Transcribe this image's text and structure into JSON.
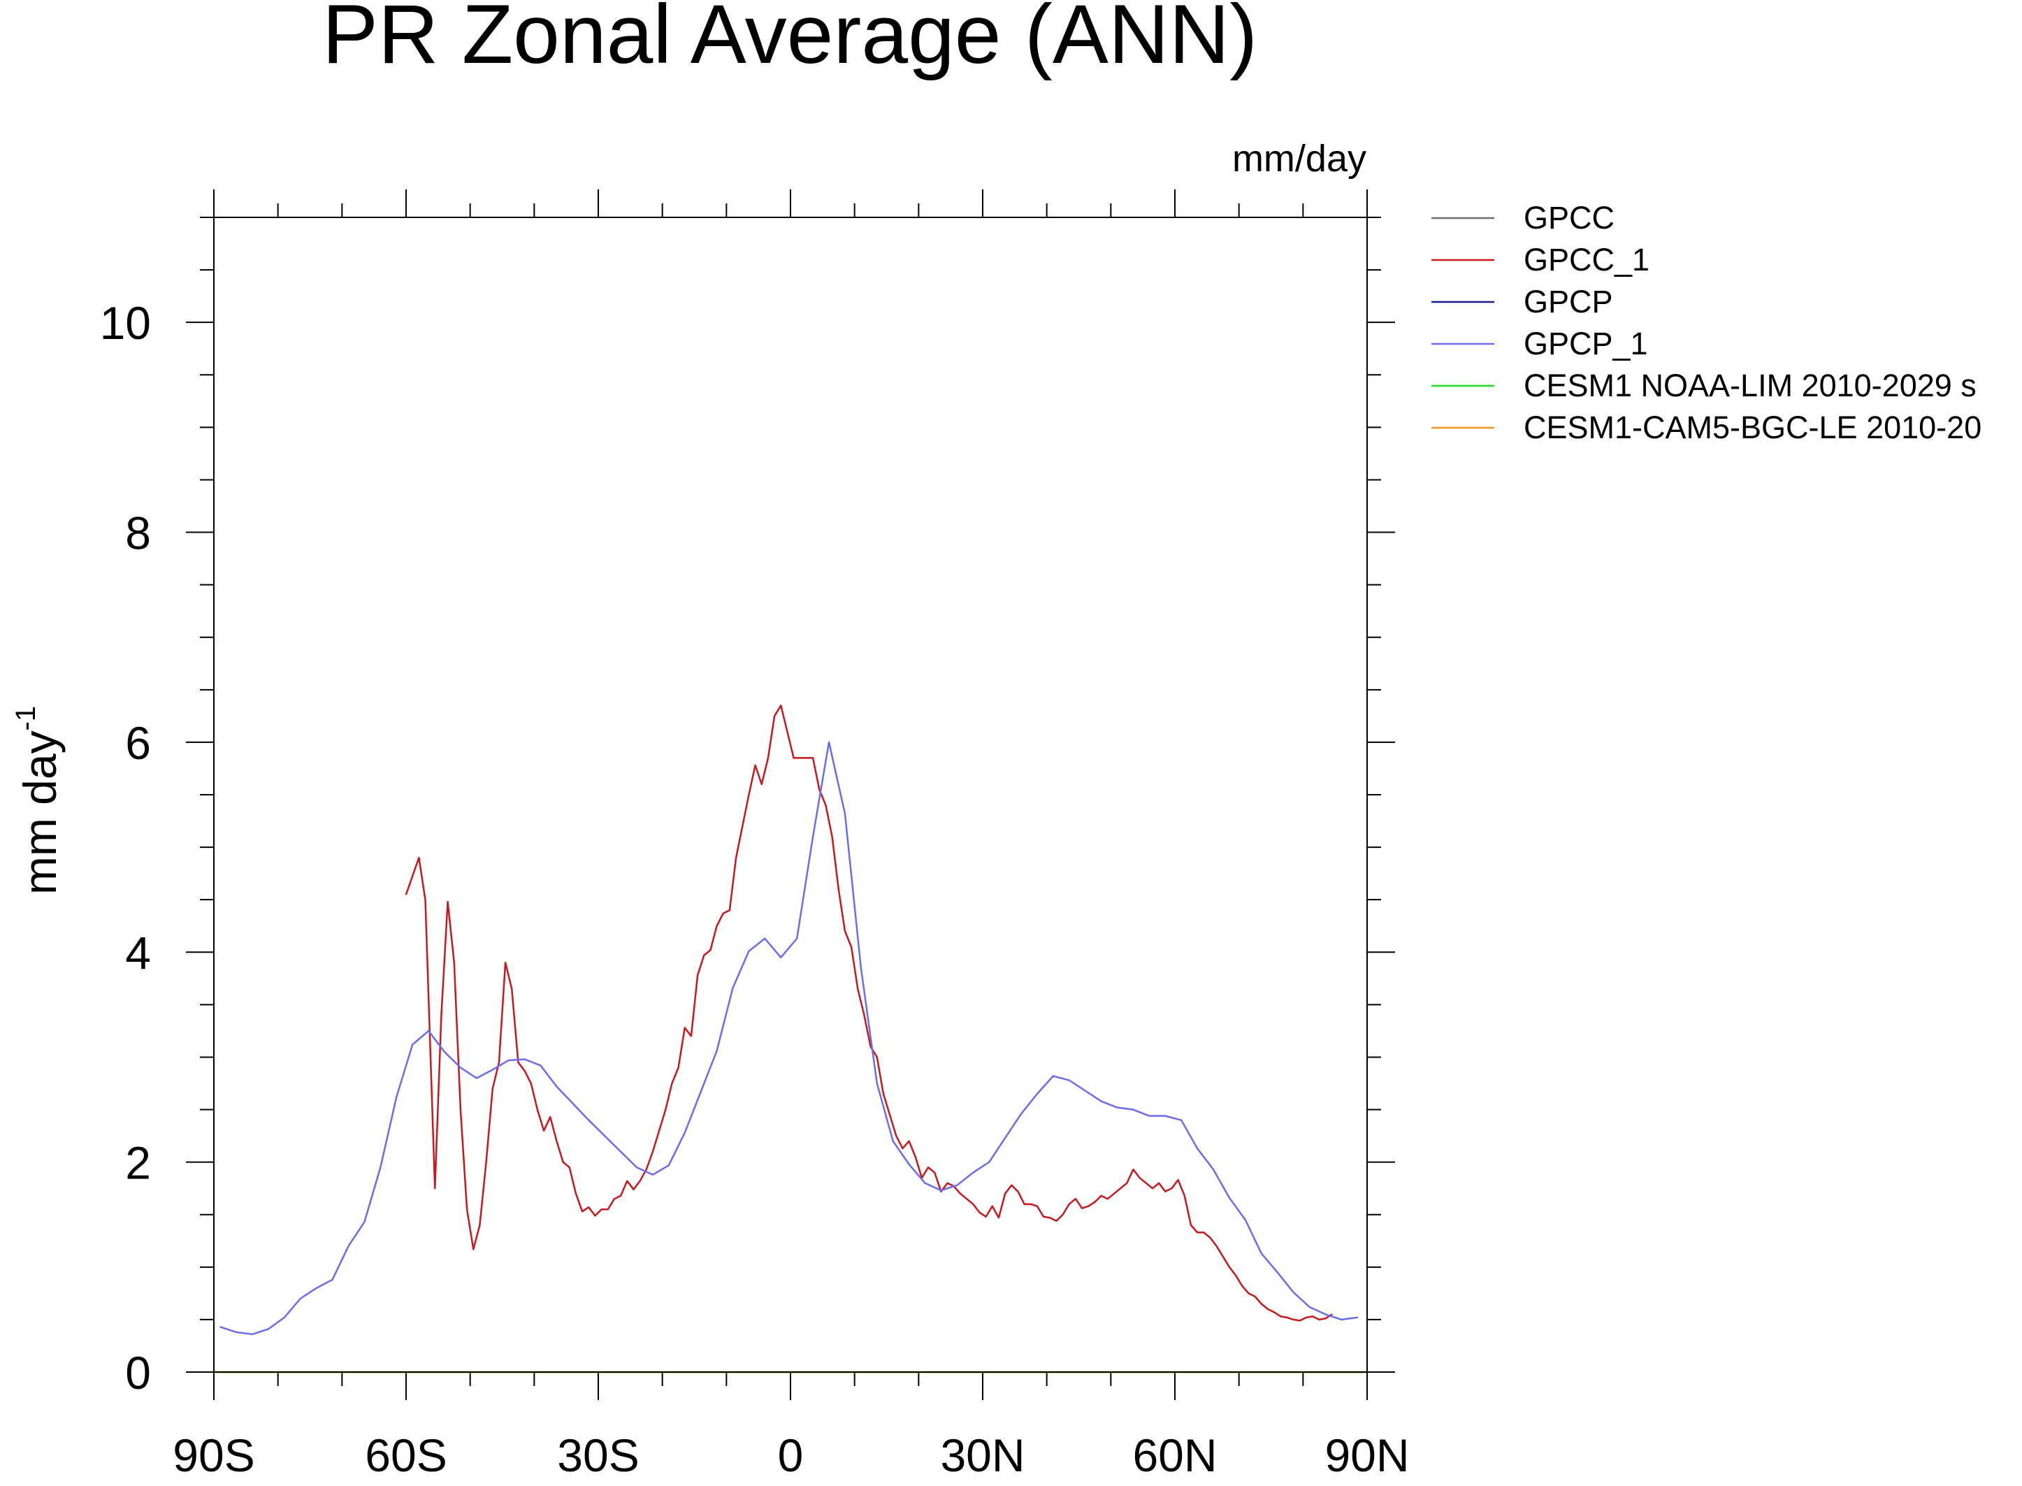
{
  "chart_data": {
    "type": "line",
    "title": "PR Zonal Average (ANN)",
    "units_label": "mm/day",
    "ylabel": "mm day",
    "ylabel_superscript": "-1",
    "xlim": [
      -90,
      90
    ],
    "ylim": [
      0,
      11
    ],
    "xticks": [
      {
        "value": -90,
        "label": "90S"
      },
      {
        "value": -60,
        "label": "60S"
      },
      {
        "value": -30,
        "label": "30S"
      },
      {
        "value": 0,
        "label": "0"
      },
      {
        "value": 30,
        "label": "30N"
      },
      {
        "value": 60,
        "label": "60N"
      },
      {
        "value": 90,
        "label": "90N"
      }
    ],
    "yticks": [
      {
        "value": 0,
        "label": "0"
      },
      {
        "value": 2,
        "label": "2"
      },
      {
        "value": 4,
        "label": "4"
      },
      {
        "value": 6,
        "label": "6"
      },
      {
        "value": 8,
        "label": "8"
      },
      {
        "value": 10,
        "label": "10"
      }
    ],
    "x_minor_step": 10,
    "y_minor_step": 0.5,
    "legend_position": "top-right, outside plot",
    "series": [
      {
        "name": "GPCC",
        "color": "#6e6e6e",
        "points": []
      },
      {
        "name": "GPCC_1",
        "color": "#c8181e",
        "points": [
          [
            -60,
            4.55
          ],
          [
            -58,
            4.9
          ],
          [
            -57,
            4.5
          ],
          [
            -55.5,
            1.75
          ],
          [
            -54.5,
            3.4
          ],
          [
            -53.5,
            4.48
          ],
          [
            -52.5,
            3.9
          ],
          [
            -51.5,
            2.5
          ],
          [
            -50.5,
            1.55
          ],
          [
            -49.5,
            1.17
          ],
          [
            -48.5,
            1.4
          ],
          [
            -47.5,
            2.0
          ],
          [
            -46.5,
            2.7
          ],
          [
            -45.5,
            2.95
          ],
          [
            -44.5,
            3.9
          ],
          [
            -43.5,
            3.65
          ],
          [
            -42.5,
            2.95
          ],
          [
            -41.5,
            2.87
          ],
          [
            -40.5,
            2.75
          ],
          [
            -39.5,
            2.5
          ],
          [
            -38.5,
            2.3
          ],
          [
            -37.5,
            2.43
          ],
          [
            -36.5,
            2.2
          ],
          [
            -35.5,
            2.0
          ],
          [
            -34.5,
            1.95
          ],
          [
            -33.5,
            1.7
          ],
          [
            -32.5,
            1.53
          ],
          [
            -31.5,
            1.57
          ],
          [
            -30.5,
            1.49
          ],
          [
            -29.5,
            1.55
          ],
          [
            -28.5,
            1.55
          ],
          [
            -27.5,
            1.65
          ],
          [
            -26.5,
            1.68
          ],
          [
            -25.5,
            1.82
          ],
          [
            -24.5,
            1.74
          ],
          [
            -23.5,
            1.82
          ],
          [
            -22.5,
            1.93
          ],
          [
            -21.5,
            2.1
          ],
          [
            -20.5,
            2.3
          ],
          [
            -19.5,
            2.5
          ],
          [
            -18.5,
            2.75
          ],
          [
            -17.5,
            2.9
          ],
          [
            -16.5,
            3.28
          ],
          [
            -15.5,
            3.2
          ],
          [
            -14.5,
            3.78
          ],
          [
            -13.5,
            3.97
          ],
          [
            -12.5,
            4.02
          ],
          [
            -11.5,
            4.25
          ],
          [
            -10.5,
            4.37
          ],
          [
            -9.5,
            4.4
          ],
          [
            -8.5,
            4.9
          ],
          [
            -7.5,
            5.2
          ],
          [
            -6.5,
            5.5
          ],
          [
            -5.5,
            5.78
          ],
          [
            -4.5,
            5.6
          ],
          [
            -3.5,
            5.85
          ],
          [
            -2.5,
            6.25
          ],
          [
            -1.5,
            6.35
          ],
          [
            -0.5,
            6.1
          ],
          [
            0.5,
            5.85
          ],
          [
            1.5,
            5.85
          ],
          [
            2.5,
            5.85
          ],
          [
            3.5,
            5.85
          ],
          [
            4.5,
            5.55
          ],
          [
            5.5,
            5.4
          ],
          [
            6.5,
            5.1
          ],
          [
            7.5,
            4.6
          ],
          [
            8.5,
            4.2
          ],
          [
            9.5,
            4.05
          ],
          [
            10.5,
            3.65
          ],
          [
            11.5,
            3.4
          ],
          [
            12.5,
            3.1
          ],
          [
            13.5,
            3.0
          ],
          [
            14.5,
            2.65
          ],
          [
            15.5,
            2.45
          ],
          [
            16.5,
            2.25
          ],
          [
            17.5,
            2.13
          ],
          [
            18.5,
            2.2
          ],
          [
            19.5,
            2.05
          ],
          [
            20.5,
            1.85
          ],
          [
            21.5,
            1.95
          ],
          [
            22.5,
            1.9
          ],
          [
            23.5,
            1.72
          ],
          [
            24.5,
            1.8
          ],
          [
            25.5,
            1.77
          ],
          [
            26.5,
            1.7
          ],
          [
            27.5,
            1.65
          ],
          [
            28.5,
            1.6
          ],
          [
            29.5,
            1.52
          ],
          [
            30.5,
            1.48
          ],
          [
            31.5,
            1.58
          ],
          [
            32.5,
            1.47
          ],
          [
            33.5,
            1.7
          ],
          [
            34.5,
            1.78
          ],
          [
            35.5,
            1.72
          ],
          [
            36.5,
            1.6
          ],
          [
            37.5,
            1.6
          ],
          [
            38.5,
            1.58
          ],
          [
            39.5,
            1.48
          ],
          [
            40.5,
            1.47
          ],
          [
            41.5,
            1.44
          ],
          [
            42.5,
            1.5
          ],
          [
            43.5,
            1.6
          ],
          [
            44.5,
            1.65
          ],
          [
            45.5,
            1.56
          ],
          [
            46.5,
            1.58
          ],
          [
            47.5,
            1.62
          ],
          [
            48.5,
            1.68
          ],
          [
            49.5,
            1.65
          ],
          [
            50.5,
            1.7
          ],
          [
            51.5,
            1.75
          ],
          [
            52.5,
            1.8
          ],
          [
            53.5,
            1.93
          ],
          [
            54.5,
            1.85
          ],
          [
            55.5,
            1.8
          ],
          [
            56.5,
            1.75
          ],
          [
            57.5,
            1.8
          ],
          [
            58.5,
            1.72
          ],
          [
            59.5,
            1.75
          ],
          [
            60.5,
            1.83
          ],
          [
            61.5,
            1.68
          ],
          [
            62.5,
            1.4
          ],
          [
            63.5,
            1.33
          ],
          [
            64.5,
            1.33
          ],
          [
            65.5,
            1.28
          ],
          [
            66.5,
            1.2
          ],
          [
            67.5,
            1.1
          ],
          [
            68.5,
            1.0
          ],
          [
            69.5,
            0.92
          ],
          [
            70.5,
            0.82
          ],
          [
            71.5,
            0.75
          ],
          [
            72.5,
            0.72
          ],
          [
            73.5,
            0.65
          ],
          [
            74.5,
            0.6
          ],
          [
            75.5,
            0.57
          ],
          [
            76.5,
            0.53
          ],
          [
            77.5,
            0.52
          ],
          [
            78.5,
            0.5
          ],
          [
            79.5,
            0.49
          ],
          [
            80.5,
            0.52
          ],
          [
            81.5,
            0.53
          ],
          [
            82.5,
            0.5
          ],
          [
            83.5,
            0.51
          ],
          [
            84.5,
            0.55
          ]
        ]
      },
      {
        "name": "GPCP",
        "color": "#1a1a8c",
        "points": []
      },
      {
        "name": "GPCP_1",
        "color": "#6b6bf0",
        "points": [
          [
            -89,
            0.43
          ],
          [
            -86.5,
            0.38
          ],
          [
            -84,
            0.36
          ],
          [
            -81.5,
            0.41
          ],
          [
            -79,
            0.52
          ],
          [
            -76.5,
            0.7
          ],
          [
            -74,
            0.8
          ],
          [
            -71.5,
            0.88
          ],
          [
            -69,
            1.2
          ],
          [
            -66.5,
            1.43
          ],
          [
            -64,
            1.95
          ],
          [
            -61.5,
            2.62
          ],
          [
            -59,
            3.12
          ],
          [
            -56.5,
            3.25
          ],
          [
            -54,
            3.05
          ],
          [
            -51.5,
            2.9
          ],
          [
            -49,
            2.8
          ],
          [
            -46.5,
            2.88
          ],
          [
            -44,
            2.97
          ],
          [
            -41.5,
            2.98
          ],
          [
            -39,
            2.92
          ],
          [
            -36.5,
            2.72
          ],
          [
            -34,
            2.56
          ],
          [
            -31.5,
            2.4
          ],
          [
            -29,
            2.25
          ],
          [
            -26.5,
            2.1
          ],
          [
            -24,
            1.95
          ],
          [
            -21.5,
            1.88
          ],
          [
            -19,
            1.97
          ],
          [
            -16.5,
            2.28
          ],
          [
            -14,
            2.67
          ],
          [
            -11.5,
            3.06
          ],
          [
            -9,
            3.66
          ],
          [
            -6.5,
            4.01
          ],
          [
            -4,
            4.13
          ],
          [
            -1.5,
            3.95
          ],
          [
            1,
            4.13
          ],
          [
            3.5,
            5.1
          ],
          [
            6,
            6.0
          ],
          [
            8.5,
            5.32
          ],
          [
            11,
            3.85
          ],
          [
            13.5,
            2.75
          ],
          [
            16,
            2.2
          ],
          [
            18.5,
            1.98
          ],
          [
            21,
            1.8
          ],
          [
            23.5,
            1.73
          ],
          [
            26,
            1.78
          ],
          [
            28.5,
            1.9
          ],
          [
            31,
            2.0
          ],
          [
            33.5,
            2.23
          ],
          [
            36,
            2.46
          ],
          [
            38.5,
            2.65
          ],
          [
            41,
            2.82
          ],
          [
            43.5,
            2.78
          ],
          [
            46,
            2.68
          ],
          [
            48.5,
            2.58
          ],
          [
            51,
            2.52
          ],
          [
            53.5,
            2.5
          ],
          [
            56,
            2.44
          ],
          [
            58.5,
            2.44
          ],
          [
            61,
            2.4
          ],
          [
            63.5,
            2.13
          ],
          [
            66,
            1.93
          ],
          [
            68.5,
            1.66
          ],
          [
            71,
            1.45
          ],
          [
            73.5,
            1.13
          ],
          [
            76,
            0.95
          ],
          [
            78.5,
            0.76
          ],
          [
            81,
            0.62
          ],
          [
            83.5,
            0.55
          ],
          [
            86,
            0.5
          ],
          [
            88.5,
            0.52
          ]
        ]
      },
      {
        "name": "CESM1 NOAA-LIM 2010-2029 s",
        "color": "#22dd22",
        "points": [
          [
            -90,
            0.0
          ],
          [
            90,
            0.0
          ]
        ]
      },
      {
        "name": "CESM1-CAM5-BGC-LE 2010-20",
        "color": "#f0961e",
        "points": [
          [
            -90,
            0.0
          ],
          [
            90,
            0.0
          ]
        ]
      }
    ]
  }
}
